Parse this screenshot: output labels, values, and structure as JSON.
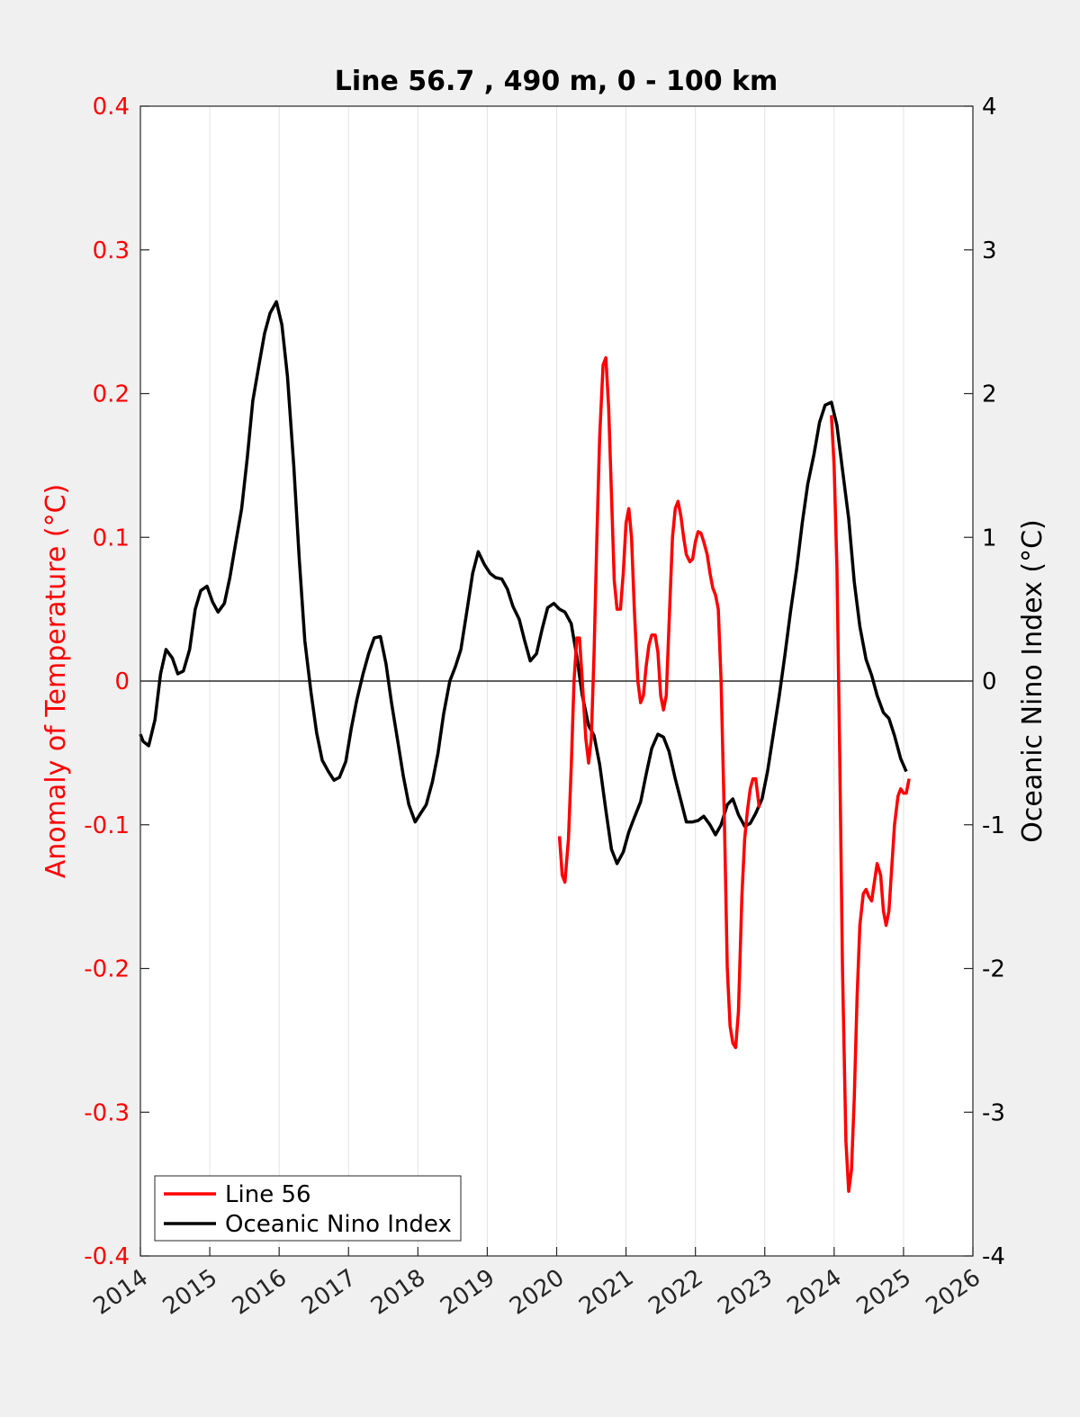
{
  "chart_data": {
    "type": "line",
    "title": "Line 56.7 , 490 m, 0 - 100 km",
    "xlim": [
      2014,
      2026
    ],
    "x_ticks": [
      "2014",
      "2015",
      "2016",
      "2017",
      "2018",
      "2019",
      "2020",
      "2021",
      "2022",
      "2023",
      "2024",
      "2025",
      "2026"
    ],
    "grid": "vertical",
    "legend_placement": "bottom-left",
    "left_axis": {
      "ylabel": "Anomaly of Temperature (°C)",
      "ylim": [
        -0.4,
        0.4
      ],
      "ticks": [
        "-0.4",
        "-0.3",
        "-0.2",
        "-0.1",
        "0",
        "0.1",
        "0.2",
        "0.3",
        "0.4"
      ],
      "color": "#ff0000"
    },
    "right_axis": {
      "ylabel": "Oceanic Nino Index (°C)",
      "ylim": [
        -4,
        4
      ],
      "ticks": [
        "-4",
        "-3",
        "-2",
        "-1",
        "0",
        "1",
        "2",
        "3",
        "4"
      ],
      "color": "#000000"
    },
    "series": [
      {
        "name": "Line 56",
        "axis": "left",
        "color": "#ff0000",
        "segments": [
          [
            [
              2020.04,
              -0.108
            ],
            [
              2020.08,
              -0.135
            ],
            [
              2020.12,
              -0.14
            ],
            [
              2020.17,
              -0.11
            ],
            [
              2020.21,
              -0.06
            ],
            [
              2020.25,
              0.0
            ],
            [
              2020.29,
              0.03
            ],
            [
              2020.33,
              0.03
            ],
            [
              2020.37,
              0.0
            ],
            [
              2020.42,
              -0.04
            ],
            [
              2020.46,
              -0.057
            ],
            [
              2020.5,
              -0.04
            ],
            [
              2020.54,
              0.02
            ],
            [
              2020.58,
              0.1
            ],
            [
              2020.62,
              0.17
            ],
            [
              2020.67,
              0.22
            ],
            [
              2020.71,
              0.225
            ],
            [
              2020.75,
              0.19
            ],
            [
              2020.79,
              0.13
            ],
            [
              2020.83,
              0.07
            ],
            [
              2020.87,
              0.05
            ],
            [
              2020.92,
              0.05
            ],
            [
              2020.96,
              0.075
            ],
            [
              2021.0,
              0.11
            ],
            [
              2021.04,
              0.12
            ],
            [
              2021.08,
              0.1
            ],
            [
              2021.12,
              0.05
            ],
            [
              2021.17,
              0.0
            ],
            [
              2021.21,
              -0.015
            ],
            [
              2021.25,
              -0.01
            ],
            [
              2021.29,
              0.01
            ],
            [
              2021.33,
              0.025
            ],
            [
              2021.37,
              0.032
            ],
            [
              2021.42,
              0.032
            ],
            [
              2021.46,
              0.02
            ],
            [
              2021.5,
              -0.01
            ],
            [
              2021.54,
              -0.02
            ],
            [
              2021.58,
              -0.01
            ],
            [
              2021.62,
              0.04
            ],
            [
              2021.67,
              0.1
            ],
            [
              2021.71,
              0.12
            ],
            [
              2021.75,
              0.125
            ],
            [
              2021.79,
              0.115
            ],
            [
              2021.83,
              0.1
            ],
            [
              2021.87,
              0.088
            ],
            [
              2021.92,
              0.083
            ],
            [
              2021.96,
              0.085
            ],
            [
              2022.0,
              0.097
            ],
            [
              2022.04,
              0.104
            ],
            [
              2022.08,
              0.103
            ],
            [
              2022.12,
              0.097
            ],
            [
              2022.17,
              0.088
            ],
            [
              2022.21,
              0.075
            ],
            [
              2022.25,
              0.065
            ],
            [
              2022.29,
              0.06
            ],
            [
              2022.33,
              0.05
            ],
            [
              2022.37,
              0.0
            ],
            [
              2022.42,
              -0.1
            ],
            [
              2022.46,
              -0.2
            ],
            [
              2022.5,
              -0.24
            ],
            [
              2022.54,
              -0.252
            ],
            [
              2022.58,
              -0.255
            ],
            [
              2022.62,
              -0.23
            ],
            [
              2022.67,
              -0.15
            ],
            [
              2022.71,
              -0.11
            ],
            [
              2022.75,
              -0.09
            ],
            [
              2022.79,
              -0.075
            ],
            [
              2022.83,
              -0.068
            ],
            [
              2022.87,
              -0.068
            ],
            [
              2022.92,
              -0.088
            ]
          ],
          [
            [
              2023.96,
              0.185
            ],
            [
              2024.0,
              0.15
            ],
            [
              2024.04,
              0.08
            ],
            [
              2024.08,
              -0.05
            ],
            [
              2024.12,
              -0.2
            ],
            [
              2024.17,
              -0.32
            ],
            [
              2024.21,
              -0.355
            ],
            [
              2024.25,
              -0.34
            ],
            [
              2024.29,
              -0.29
            ],
            [
              2024.33,
              -0.22
            ],
            [
              2024.37,
              -0.17
            ],
            [
              2024.42,
              -0.148
            ],
            [
              2024.46,
              -0.145
            ],
            [
              2024.5,
              -0.15
            ],
            [
              2024.54,
              -0.153
            ],
            [
              2024.58,
              -0.14
            ],
            [
              2024.62,
              -0.127
            ],
            [
              2024.67,
              -0.135
            ],
            [
              2024.71,
              -0.16
            ],
            [
              2024.75,
              -0.17
            ],
            [
              2024.79,
              -0.16
            ],
            [
              2024.83,
              -0.13
            ],
            [
              2024.87,
              -0.1
            ],
            [
              2024.92,
              -0.08
            ],
            [
              2024.96,
              -0.075
            ],
            [
              2025.0,
              -0.078
            ],
            [
              2025.04,
              -0.078
            ],
            [
              2025.08,
              -0.068
            ]
          ]
        ]
      },
      {
        "name": "Oceanic Nino Index",
        "axis": "right",
        "color": "#000000",
        "points": [
          [
            2014.0,
            -0.37
          ],
          [
            2014.04,
            -0.42
          ],
          [
            2014.12,
            -0.45
          ],
          [
            2014.21,
            -0.27
          ],
          [
            2014.29,
            0.05
          ],
          [
            2014.37,
            0.22
          ],
          [
            2014.46,
            0.16
          ],
          [
            2014.54,
            0.05
          ],
          [
            2014.62,
            0.07
          ],
          [
            2014.71,
            0.22
          ],
          [
            2014.79,
            0.5
          ],
          [
            2014.87,
            0.63
          ],
          [
            2014.96,
            0.66
          ],
          [
            2015.04,
            0.55
          ],
          [
            2015.12,
            0.48
          ],
          [
            2015.21,
            0.54
          ],
          [
            2015.29,
            0.72
          ],
          [
            2015.37,
            0.95
          ],
          [
            2015.46,
            1.2
          ],
          [
            2015.54,
            1.55
          ],
          [
            2015.62,
            1.95
          ],
          [
            2015.71,
            2.2
          ],
          [
            2015.79,
            2.42
          ],
          [
            2015.87,
            2.56
          ],
          [
            2015.96,
            2.64
          ],
          [
            2016.04,
            2.48
          ],
          [
            2016.12,
            2.12
          ],
          [
            2016.21,
            1.5
          ],
          [
            2016.29,
            0.85
          ],
          [
            2016.37,
            0.28
          ],
          [
            2016.46,
            -0.08
          ],
          [
            2016.54,
            -0.36
          ],
          [
            2016.62,
            -0.55
          ],
          [
            2016.71,
            -0.63
          ],
          [
            2016.79,
            -0.69
          ],
          [
            2016.87,
            -0.67
          ],
          [
            2016.96,
            -0.56
          ],
          [
            2017.04,
            -0.33
          ],
          [
            2017.12,
            -0.13
          ],
          [
            2017.21,
            0.05
          ],
          [
            2017.29,
            0.19
          ],
          [
            2017.37,
            0.3
          ],
          [
            2017.46,
            0.31
          ],
          [
            2017.54,
            0.12
          ],
          [
            2017.62,
            -0.15
          ],
          [
            2017.71,
            -0.42
          ],
          [
            2017.79,
            -0.66
          ],
          [
            2017.87,
            -0.86
          ],
          [
            2017.96,
            -0.98
          ],
          [
            2018.04,
            -0.92
          ],
          [
            2018.12,
            -0.86
          ],
          [
            2018.21,
            -0.7
          ],
          [
            2018.29,
            -0.5
          ],
          [
            2018.37,
            -0.23
          ],
          [
            2018.46,
            0.0
          ],
          [
            2018.54,
            0.1
          ],
          [
            2018.62,
            0.22
          ],
          [
            2018.71,
            0.5
          ],
          [
            2018.79,
            0.75
          ],
          [
            2018.87,
            0.9
          ],
          [
            2018.96,
            0.81
          ],
          [
            2019.04,
            0.75
          ],
          [
            2019.12,
            0.72
          ],
          [
            2019.21,
            0.71
          ],
          [
            2019.29,
            0.64
          ],
          [
            2019.37,
            0.52
          ],
          [
            2019.46,
            0.43
          ],
          [
            2019.54,
            0.28
          ],
          [
            2019.62,
            0.14
          ],
          [
            2019.71,
            0.19
          ],
          [
            2019.79,
            0.36
          ],
          [
            2019.87,
            0.51
          ],
          [
            2019.96,
            0.54
          ],
          [
            2020.04,
            0.5
          ],
          [
            2020.12,
            0.48
          ],
          [
            2020.21,
            0.4
          ],
          [
            2020.29,
            0.17
          ],
          [
            2020.37,
            -0.1
          ],
          [
            2020.46,
            -0.31
          ],
          [
            2020.54,
            -0.38
          ],
          [
            2020.62,
            -0.58
          ],
          [
            2020.71,
            -0.9
          ],
          [
            2020.79,
            -1.17
          ],
          [
            2020.87,
            -1.27
          ],
          [
            2020.96,
            -1.19
          ],
          [
            2021.04,
            -1.05
          ],
          [
            2021.12,
            -0.95
          ],
          [
            2021.21,
            -0.84
          ],
          [
            2021.29,
            -0.65
          ],
          [
            2021.37,
            -0.47
          ],
          [
            2021.46,
            -0.37
          ],
          [
            2021.54,
            -0.39
          ],
          [
            2021.62,
            -0.49
          ],
          [
            2021.71,
            -0.68
          ],
          [
            2021.79,
            -0.83
          ],
          [
            2021.87,
            -0.98
          ],
          [
            2021.96,
            -0.98
          ],
          [
            2022.04,
            -0.97
          ],
          [
            2022.12,
            -0.94
          ],
          [
            2022.21,
            -1.0
          ],
          [
            2022.29,
            -1.07
          ],
          [
            2022.37,
            -1.0
          ],
          [
            2022.46,
            -0.86
          ],
          [
            2022.54,
            -0.82
          ],
          [
            2022.62,
            -0.93
          ],
          [
            2022.71,
            -1.01
          ],
          [
            2022.79,
            -0.99
          ],
          [
            2022.87,
            -0.92
          ],
          [
            2022.96,
            -0.82
          ],
          [
            2023.04,
            -0.63
          ],
          [
            2023.12,
            -0.38
          ],
          [
            2023.21,
            -0.1
          ],
          [
            2023.29,
            0.18
          ],
          [
            2023.37,
            0.48
          ],
          [
            2023.46,
            0.78
          ],
          [
            2023.54,
            1.1
          ],
          [
            2023.62,
            1.37
          ],
          [
            2023.71,
            1.58
          ],
          [
            2023.79,
            1.8
          ],
          [
            2023.87,
            1.92
          ],
          [
            2023.96,
            1.94
          ],
          [
            2024.04,
            1.78
          ],
          [
            2024.12,
            1.47
          ],
          [
            2024.21,
            1.13
          ],
          [
            2024.29,
            0.69
          ],
          [
            2024.37,
            0.38
          ],
          [
            2024.46,
            0.15
          ],
          [
            2024.54,
            0.04
          ],
          [
            2024.62,
            -0.1
          ],
          [
            2024.71,
            -0.22
          ],
          [
            2024.79,
            -0.26
          ],
          [
            2024.87,
            -0.38
          ],
          [
            2024.96,
            -0.54
          ],
          [
            2025.04,
            -0.63
          ]
        ]
      }
    ]
  }
}
